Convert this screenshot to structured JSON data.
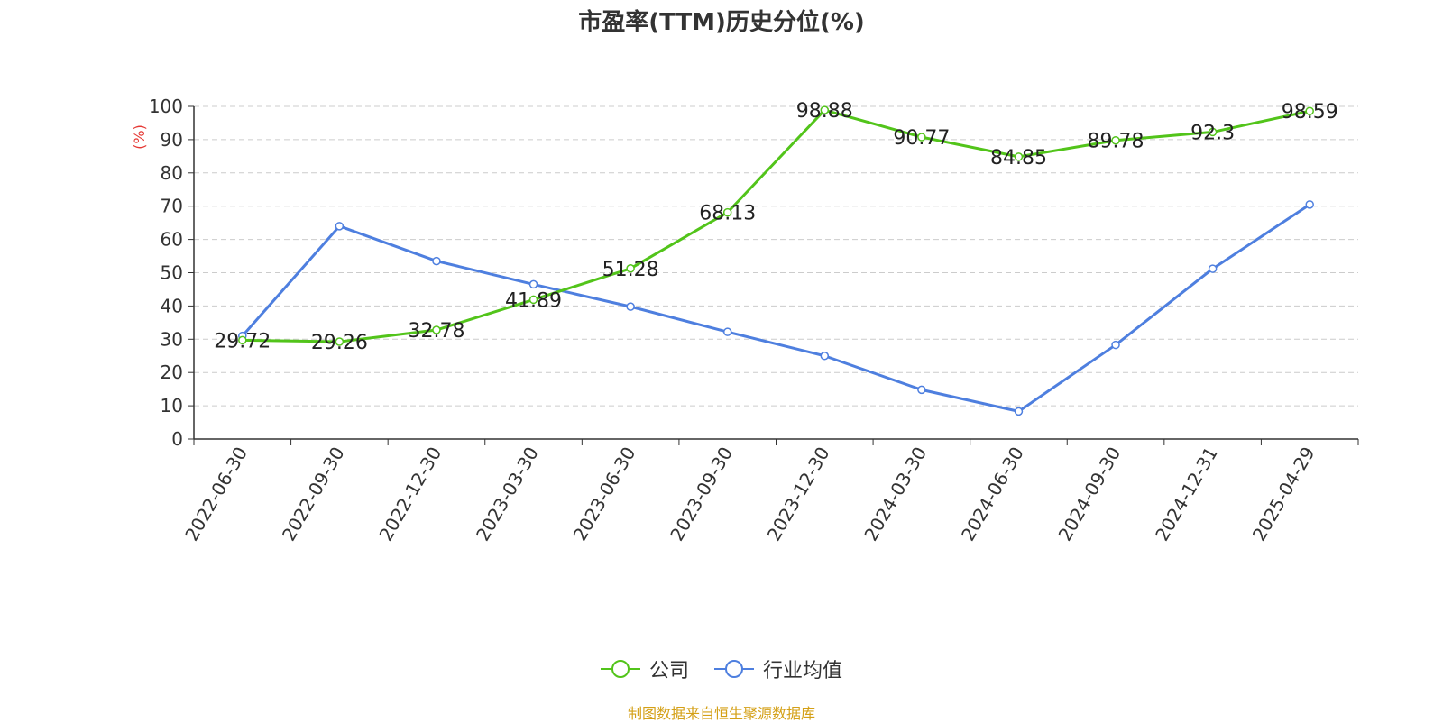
{
  "chart_data": {
    "type": "line",
    "title": "市盈率(TTM)历史分位(%)",
    "ylabel": "(%)",
    "ylim": [
      0,
      100
    ],
    "yticks": [
      0,
      10,
      20,
      30,
      40,
      50,
      60,
      70,
      80,
      90,
      100
    ],
    "grid": true,
    "legend_position": "bottom-center",
    "categories": [
      "2022-06-30",
      "2022-09-30",
      "2022-12-30",
      "2023-03-30",
      "2023-06-30",
      "2023-09-30",
      "2023-12-30",
      "2024-03-30",
      "2024-06-30",
      "2024-09-30",
      "2024-12-31",
      "2025-04-29"
    ],
    "series": [
      {
        "name": "公司",
        "color": "#52c41a",
        "show_labels": true,
        "values": [
          29.72,
          29.26,
          32.78,
          41.89,
          51.28,
          68.13,
          98.88,
          90.77,
          84.85,
          89.78,
          92.3,
          98.59
        ]
      },
      {
        "name": "行业均值",
        "color": "#4e7fdf",
        "show_labels": false,
        "values": [
          31,
          64,
          53.5,
          46.5,
          39.8,
          32.2,
          25,
          14.8,
          8.3,
          28.3,
          51.2,
          70.5
        ]
      }
    ]
  },
  "source_text": "制图数据来自恒生聚源数据库",
  "colors": {
    "axis": "#333333",
    "grid": "#cccccc",
    "ylabel": "#e53935",
    "source": "#d4a017"
  }
}
